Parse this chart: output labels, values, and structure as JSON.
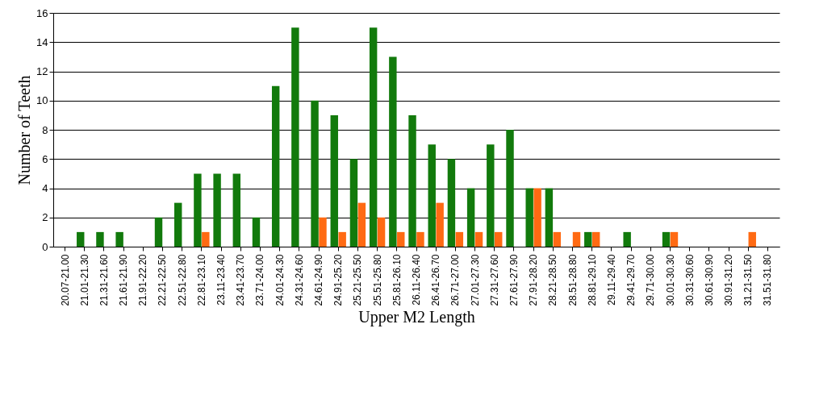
{
  "chart_data": {
    "type": "bar",
    "xlabel": "Upper M2 Length",
    "ylabel": "Number of Teeth",
    "categories": [
      "20.07-21.00",
      "21.01-21.30",
      "21.31-21.60",
      "21.61-21.90",
      "21.91-22.20",
      "22.21-22.50",
      "22.51-22.80",
      "22.81-23.10",
      "23.11-23.40",
      "23.41-23.70",
      "23.71-24.00",
      "24.01-24.30",
      "24.31-24.60",
      "24.61-24.90",
      "24.91-25.20",
      "25.21-25.50",
      "25.51-25.80",
      "25.81-26.10",
      "26.11-26.40",
      "26.41-26.70",
      "26.71-27.00",
      "27.01-27.30",
      "27.31-27.60",
      "27.61-27.90",
      "27.91-28.20",
      "28.21-28.50",
      "28.51-28.80",
      "28.81-29.10",
      "29.11-29.40",
      "29.41-29.70",
      "29.71-30.00",
      "30.01-30.30",
      "30.31-30.60",
      "30.61-30.90",
      "30.91-31.20",
      "31.21-31.50",
      "31.51-31.80"
    ],
    "series": [
      {
        "color": "#127a0c",
        "values": [
          0,
          1,
          1,
          1,
          0,
          2,
          3,
          5,
          5,
          5,
          2,
          11,
          15,
          10,
          9,
          6,
          15,
          13,
          9,
          7,
          6,
          4,
          7,
          8,
          4,
          4,
          0,
          1,
          0,
          1,
          0,
          1,
          0,
          0,
          0,
          0,
          0
        ]
      },
      {
        "color": "#ff6a13",
        "values": [
          0,
          0,
          0,
          0,
          0,
          0,
          0,
          1,
          0,
          0,
          0,
          0,
          0,
          2,
          1,
          3,
          2,
          1,
          1,
          3,
          1,
          1,
          1,
          0,
          4,
          1,
          1,
          1,
          0,
          0,
          0,
          1,
          0,
          0,
          0,
          1,
          0
        ]
      }
    ],
    "ylim": [
      0,
      16
    ],
    "yticks": [
      0,
      2,
      4,
      6,
      8,
      10,
      12,
      14,
      16
    ],
    "grid": "y",
    "legend": false
  }
}
